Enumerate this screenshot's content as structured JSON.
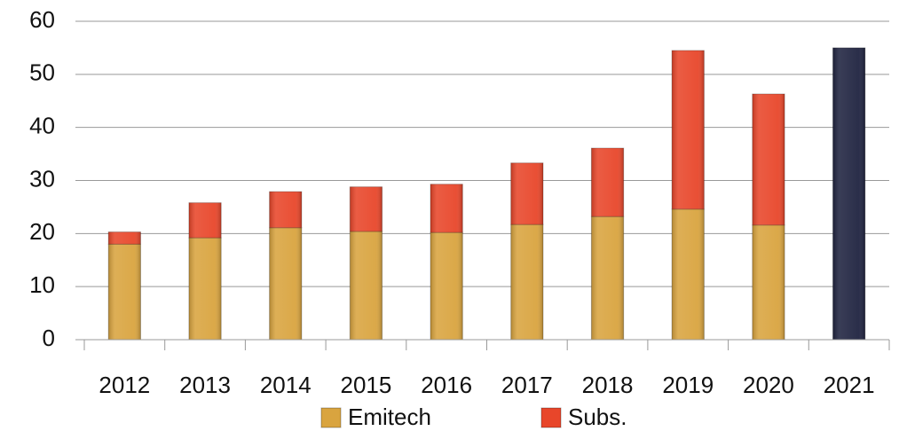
{
  "chart_data": {
    "type": "stacked_bar",
    "categories": [
      "2012",
      "2013",
      "2014",
      "2015",
      "2016",
      "2017",
      "2018",
      "2019",
      "2020",
      "2021"
    ],
    "series": [
      {
        "name": "Emitech",
        "color": "#d9a43f",
        "colors": [
          "#d9a43f",
          "#d9a43f",
          "#d9a43f",
          "#d9a43f",
          "#d9a43f",
          "#d9a43f",
          "#d9a43f",
          "#d9a43f",
          "#d9a43f",
          "#1f2340"
        ],
        "values": [
          18,
          19.2,
          21.1,
          20.4,
          20.2,
          21.7,
          23.2,
          24.6,
          21.6,
          55
        ]
      },
      {
        "name": "Subs.",
        "color": "#e8462a",
        "values": [
          2.3,
          6.6,
          6.8,
          8.4,
          9.1,
          11.6,
          12.9,
          29.9,
          24.7,
          null
        ]
      }
    ],
    "ylim": [
      0,
      60
    ],
    "yticks": [
      0,
      10,
      20,
      30,
      40,
      50,
      60
    ],
    "grid": true,
    "legend": "bottom"
  }
}
